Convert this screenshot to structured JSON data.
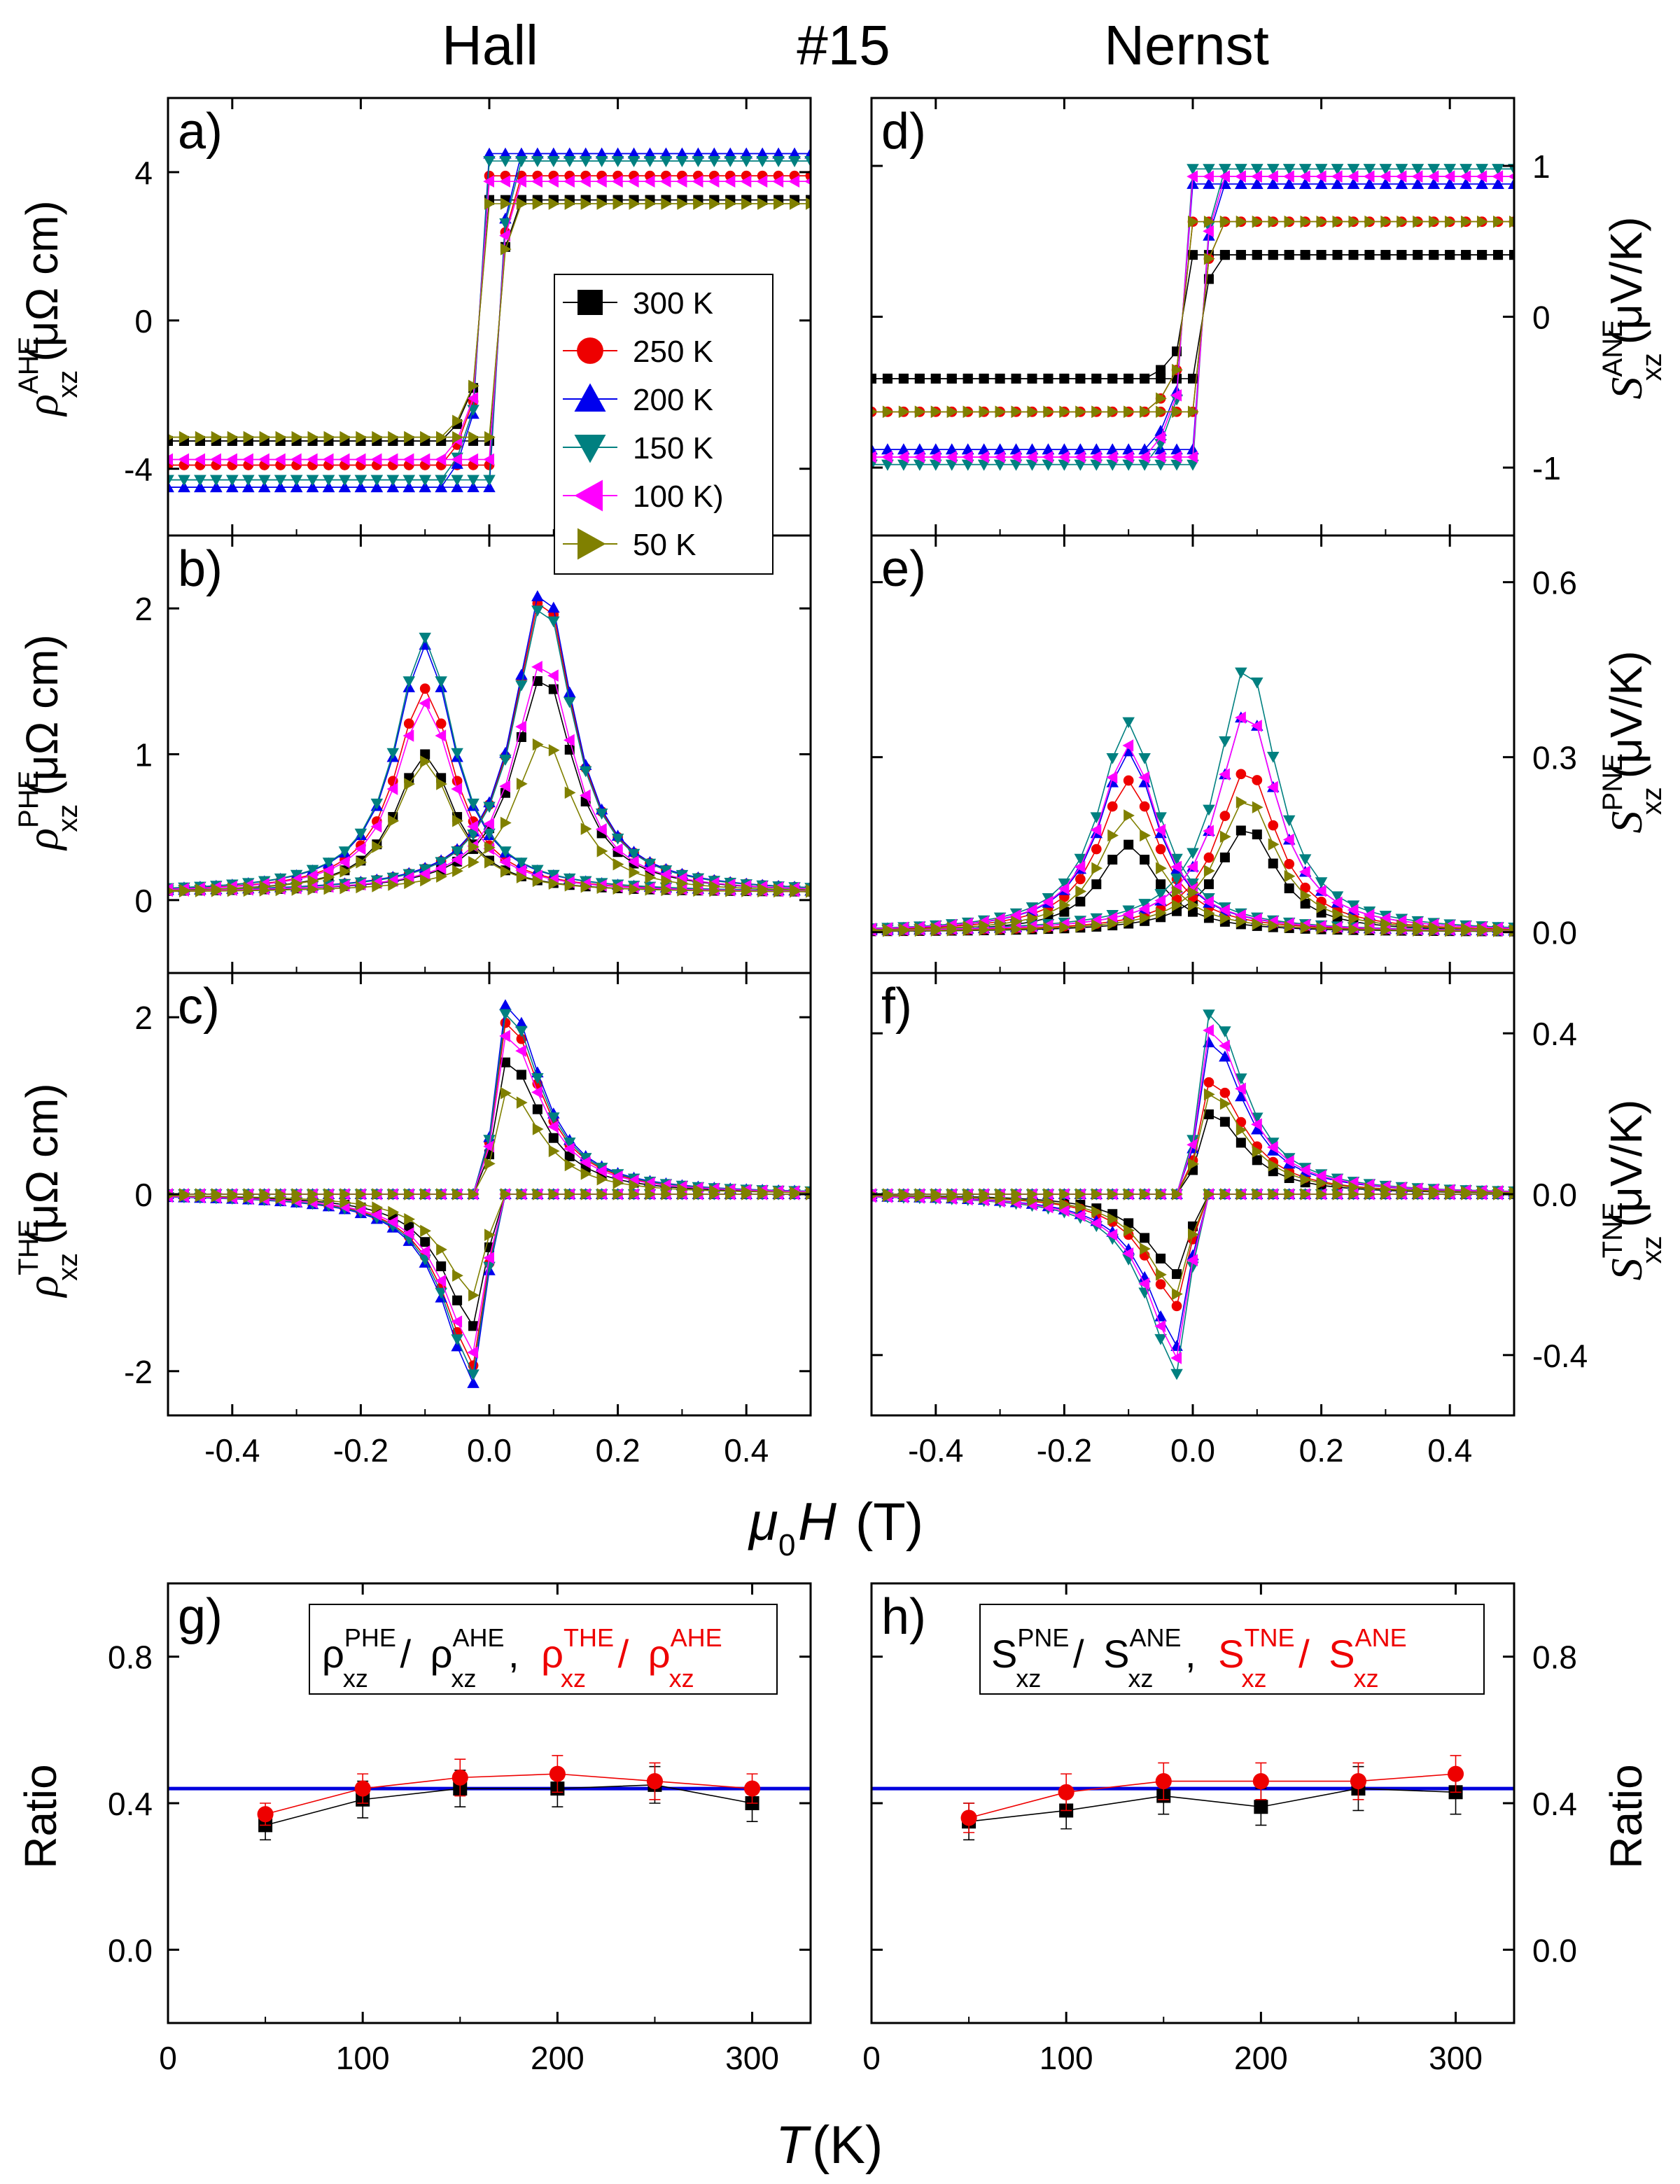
{
  "titles": {
    "left": "Hall",
    "center": "#15",
    "right": "Nernst"
  },
  "xlabel_field": {
    "sym": "μ",
    "sub": "0",
    "var": "H",
    "unit": "(T)"
  },
  "xlabel_temp": {
    "var": "T",
    "unit": "(K)"
  },
  "ylabels": {
    "a": {
      "base": "ρ",
      "sup": "AHE",
      "sub": "xz",
      "unit": "(μΩ cm)"
    },
    "b": {
      "base": "ρ",
      "sup": "PHE",
      "sub": "xz",
      "unit": "(μΩ cm)"
    },
    "c": {
      "base": "ρ",
      "sup": "THE",
      "sub": "xz",
      "unit": "(μΩ cm)"
    },
    "d": {
      "base": "S",
      "sup": "ANE",
      "sub": "xz",
      "unit": "(μV/K)"
    },
    "e": {
      "base": "S",
      "sup": "PNE",
      "sub": "xz",
      "unit": "(μV/K)"
    },
    "f": {
      "base": "S",
      "sup": "TNE",
      "sub": "xz",
      "unit": "(μV/K)"
    },
    "g": "Ratio",
    "h": "Ratio"
  },
  "legend_g": {
    "t1b": "ρ",
    "t1p": "PHE",
    "t1s": "xz",
    "sep": "/",
    "t2b": "ρ",
    "t2p": "AHE",
    "t2s": "xz",
    "comma": ",",
    "t3b": "ρ",
    "t3p": "THE",
    "t3s": "xz",
    "t4b": "ρ",
    "t4p": "AHE",
    "t4s": "xz"
  },
  "legend_h": {
    "t1b": "S",
    "t1p": "PNE",
    "t1s": "xz",
    "sep": "/",
    "t2b": "S",
    "t2p": "ANE",
    "t2s": "xz",
    "comma": ",",
    "t3b": "S",
    "t3p": "TNE",
    "t3s": "xz",
    "t4b": "S",
    "t4p": "ANE",
    "t4s": "xz"
  },
  "chart_data": [
    {
      "id": "a",
      "label": "a)",
      "type": "line",
      "xlim": [
        -0.5,
        0.5
      ],
      "ylim": [
        -5.8,
        6
      ],
      "yticks": [
        -4,
        0,
        4
      ],
      "xticks": [
        -0.4,
        -0.2,
        0.0,
        0.2,
        0.4
      ],
      "xtick_labels": [
        "-0.4",
        "-0.2",
        "0.0",
        "0.2",
        "0.4"
      ],
      "ytick_labels": [
        "-4",
        "0",
        "4"
      ],
      "legend": [
        "300 K",
        "250 K",
        "200 K",
        "150 K",
        "100 K)",
        "50 K"
      ],
      "kind": "step",
      "amps": [
        3.25,
        3.9,
        4.5,
        4.3,
        3.75,
        3.15
      ],
      "trans_center": 0.0
    },
    {
      "id": "b",
      "label": "b)",
      "type": "line",
      "xlim": [
        -0.5,
        0.5
      ],
      "ylim": [
        -0.5,
        2.5
      ],
      "yticks": [
        0,
        1,
        2
      ],
      "xticks": [
        -0.4,
        -0.2,
        0.0,
        0.2,
        0.4
      ],
      "xtick_labels": [
        "-0.4",
        "-0.2",
        "0.0",
        "0.2",
        "0.4"
      ],
      "ytick_labels": [
        "0",
        "1",
        "2"
      ],
      "kind": "double_peak",
      "peak_neg": [
        1.0,
        1.45,
        1.75,
        1.8,
        1.35,
        0.95
      ],
      "peak_pos": [
        1.55,
        2.1,
        2.15,
        2.05,
        1.65,
        1.1
      ],
      "baseline": 0.05
    },
    {
      "id": "c",
      "label": "c)",
      "type": "line",
      "xlim": [
        -0.5,
        0.5
      ],
      "ylim": [
        -2.5,
        2.5
      ],
      "yticks": [
        -2,
        0,
        2
      ],
      "xticks": [
        -0.4,
        -0.2,
        0.0,
        0.2,
        0.4
      ],
      "xtick_labels": [
        "-0.4",
        "-0.2",
        "0.0",
        "0.2",
        "0.4"
      ],
      "ytick_labels": [
        "-2",
        "0",
        "2"
      ],
      "kind": "antisym",
      "peak": [
        1.5,
        1.95,
        2.15,
        2.05,
        1.8,
        1.15
      ]
    },
    {
      "id": "d",
      "label": "d)",
      "type": "line",
      "xlim": [
        -0.5,
        0.5
      ],
      "ylim": [
        -1.45,
        1.45
      ],
      "yticks": [
        -1,
        0,
        1
      ],
      "xticks": [
        -0.4,
        -0.2,
        0.0,
        0.2,
        0.4
      ],
      "xtick_labels": [
        "-0.4",
        "-0.2",
        "0.0",
        "0.2",
        "0.4"
      ],
      "ytick_labels": [
        "-1",
        "0",
        "1"
      ],
      "kind": "step",
      "amps": [
        0.41,
        0.63,
        0.88,
        0.98,
        0.93,
        0.63
      ],
      "trans_center": 0.0
    },
    {
      "id": "e",
      "label": "e)",
      "type": "line",
      "xlim": [
        -0.5,
        0.5
      ],
      "ylim": [
        -0.07,
        0.68
      ],
      "yticks": [
        0.0,
        0.3,
        0.6
      ],
      "xticks": [
        -0.4,
        -0.2,
        0.0,
        0.2,
        0.4
      ],
      "xtick_labels": [
        "-0.4",
        "-0.2",
        "0.0",
        "0.2",
        "0.4"
      ],
      "ytick_labels": [
        "0.0",
        "0.3",
        "0.6"
      ],
      "kind": "double_peak",
      "peak_neg": [
        0.15,
        0.26,
        0.31,
        0.36,
        0.32,
        0.2
      ],
      "peak_pos": [
        0.18,
        0.28,
        0.38,
        0.46,
        0.38,
        0.23
      ],
      "baseline": 0.0
    },
    {
      "id": "f",
      "label": "f)",
      "type": "line",
      "xlim": [
        -0.5,
        0.5
      ],
      "ylim": [
        -0.55,
        0.55
      ],
      "yticks": [
        -0.4,
        0.0,
        0.4
      ],
      "xticks": [
        -0.4,
        -0.2,
        0.0,
        0.2,
        0.4
      ],
      "xtick_labels": [
        "-0.4",
        "-0.2",
        "0.0",
        "0.2",
        "0.4"
      ],
      "ytick_labels": [
        "-0.4",
        "0.0",
        "0.4"
      ],
      "kind": "antisym",
      "peak": [
        0.2,
        0.28,
        0.38,
        0.45,
        0.41,
        0.25
      ]
    },
    {
      "id": "g",
      "label": "g)",
      "type": "scatter",
      "xlim": [
        0,
        330
      ],
      "ylim": [
        -0.2,
        1.0
      ],
      "yticks": [
        0.0,
        0.4,
        0.8
      ],
      "xticks": [
        0,
        100,
        200,
        300
      ],
      "xtick_labels": [
        "0",
        "100",
        "200",
        "300"
      ],
      "ytick_labels": [
        "0.0",
        "0.4",
        "0.8"
      ],
      "hline": 0.44,
      "x": [
        50,
        100,
        150,
        200,
        250,
        300
      ],
      "series": [
        {
          "name": "PHE/AHE",
          "color": "#000000",
          "values": [
            0.34,
            0.41,
            0.44,
            0.44,
            0.45,
            0.4
          ],
          "err": [
            0.04,
            0.05,
            0.05,
            0.05,
            0.05,
            0.05
          ]
        },
        {
          "name": "THE/AHE",
          "color": "#ee0000",
          "values": [
            0.37,
            0.44,
            0.47,
            0.48,
            0.46,
            0.44
          ],
          "err": [
            0.03,
            0.04,
            0.05,
            0.05,
            0.05,
            0.04
          ]
        }
      ]
    },
    {
      "id": "h",
      "label": "h)",
      "type": "scatter",
      "xlim": [
        0,
        330
      ],
      "ylim": [
        -0.2,
        1.0
      ],
      "yticks": [
        0.0,
        0.4,
        0.8
      ],
      "xticks": [
        0,
        100,
        200,
        300
      ],
      "xtick_labels": [
        "0",
        "100",
        "200",
        "300"
      ],
      "ytick_labels": [
        "0.0",
        "0.4",
        "0.8"
      ],
      "hline": 0.44,
      "x": [
        50,
        100,
        150,
        200,
        250,
        300
      ],
      "series": [
        {
          "name": "PNE/ANE",
          "color": "#000000",
          "values": [
            0.35,
            0.38,
            0.42,
            0.39,
            0.44,
            0.43
          ],
          "err": [
            0.05,
            0.05,
            0.05,
            0.05,
            0.06,
            0.06
          ]
        },
        {
          "name": "TNE/ANE",
          "color": "#ee0000",
          "values": [
            0.36,
            0.43,
            0.46,
            0.46,
            0.46,
            0.48
          ],
          "err": [
            0.04,
            0.05,
            0.05,
            0.05,
            0.05,
            0.05
          ]
        }
      ]
    }
  ],
  "series_styles": [
    {
      "name": "300 K",
      "color": "#000000",
      "marker": "square"
    },
    {
      "name": "250 K",
      "color": "#ee0000",
      "marker": "circle"
    },
    {
      "name": "200 K",
      "color": "#0000ee",
      "marker": "triangle-up"
    },
    {
      "name": "150 K",
      "color": "#008080",
      "marker": "triangle-down"
    },
    {
      "name": "100 K",
      "color": "#ff00ff",
      "marker": "triangle-left"
    },
    {
      "name": "50 K",
      "color": "#808000",
      "marker": "triangle-right"
    }
  ],
  "accent": {
    "hline": "#0000dd",
    "red": "#ee0000"
  }
}
